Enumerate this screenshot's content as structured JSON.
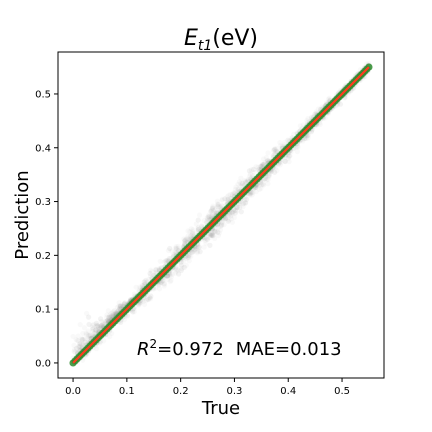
{
  "chart_data": {
    "type": "scatter",
    "title_main": "E",
    "title_sub": "t1",
    "title_unit": "(eV)",
    "xlabel": "True",
    "ylabel": "Prediction",
    "xlim": [
      -0.028,
      0.578
    ],
    "ylim": [
      -0.028,
      0.578
    ],
    "xticks": [
      0.0,
      0.1,
      0.2,
      0.3,
      0.4,
      0.5
    ],
    "yticks": [
      0.0,
      0.1,
      0.2,
      0.3,
      0.4,
      0.5
    ],
    "xtick_labels": [
      "0.0",
      "0.1",
      "0.2",
      "0.3",
      "0.4",
      "0.5"
    ],
    "ytick_labels": [
      "0.0",
      "0.1",
      "0.2",
      "0.3",
      "0.4",
      "0.5"
    ],
    "annotation_r2_label": "R",
    "annotation_r2_sup": "2",
    "annotation_r2_value": "=0.972",
    "annotation_mae": "MAE=0.013",
    "fit_line": {
      "x": [
        0.0,
        0.55
      ],
      "y": [
        0.0,
        0.55
      ]
    },
    "scatter_range": {
      "min": 0.0,
      "max": 0.55
    },
    "grid": false,
    "colors": {
      "scatter": "#808080",
      "binned": "#2e8b2e",
      "fit": "#ff3b1f"
    }
  }
}
